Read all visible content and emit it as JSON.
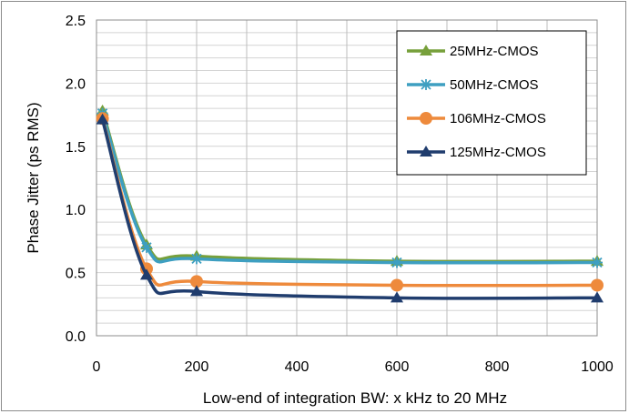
{
  "chart_data": {
    "type": "line",
    "title": "",
    "xlabel": "Low-end of integration BW: x kHz to 20 MHz",
    "ylabel": "Phase Jitter (ps RMS)",
    "xlim": [
      0,
      1000
    ],
    "ylim": [
      0,
      2.5
    ],
    "x_ticks": [
      "0",
      "200",
      "400",
      "600",
      "800",
      "1000"
    ],
    "y_ticks": [
      "0.0",
      "0.5",
      "1.0",
      "1.5",
      "2.0",
      "2.5"
    ],
    "grid": true,
    "legend_position": "top-right",
    "x": [
      12,
      100,
      200,
      600,
      1000
    ],
    "series": [
      {
        "name": "25MHz-CMOS",
        "values": [
          1.78,
          0.72,
          0.63,
          0.59,
          0.59
        ],
        "color": "#77a03b",
        "marker": "triangle"
      },
      {
        "name": "50MHz-CMOS",
        "values": [
          1.76,
          0.7,
          0.61,
          0.58,
          0.58
        ],
        "color": "#3e9fc1",
        "marker": "star"
      },
      {
        "name": "106MHz-CMOS",
        "values": [
          1.72,
          0.53,
          0.43,
          0.4,
          0.4
        ],
        "color": "#ee8a3c",
        "marker": "circle"
      },
      {
        "name": "125MHz-CMOS",
        "values": [
          1.71,
          0.48,
          0.35,
          0.3,
          0.3
        ],
        "color": "#203d6e",
        "marker": "triangle"
      }
    ]
  }
}
